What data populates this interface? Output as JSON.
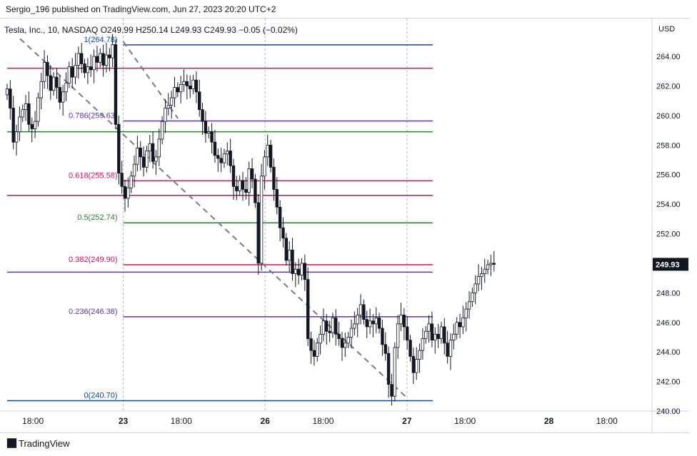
{
  "header": {
    "published": "Sergio_196 published on TradingView.com, Jun 27, 2023 20:20 UTC+2"
  },
  "chart_data": {
    "type": "candlestick",
    "legend": "Tesla, Inc., 10, NASDAQ  O249.99  H250.14  L249.93  C249.93  −0.05 (−0.02%)",
    "currency": "USD",
    "last_price": "249.93",
    "ylim": [
      240,
      265.5
    ],
    "y_ticks": [
      "240.00",
      "242.00",
      "244.00",
      "246.00",
      "248.00",
      "250.00",
      "252.00",
      "254.00",
      "256.00",
      "258.00",
      "260.00",
      "262.00",
      "264.00"
    ],
    "x_ticks": [
      {
        "label": "18:00",
        "pos": 0.04,
        "bold": false
      },
      {
        "label": "23",
        "pos": 0.18,
        "bold": true
      },
      {
        "label": "18:00",
        "pos": 0.27,
        "bold": false
      },
      {
        "label": "26",
        "pos": 0.4,
        "bold": true
      },
      {
        "label": "18:00",
        "pos": 0.49,
        "bold": false
      },
      {
        "label": "27",
        "pos": 0.62,
        "bold": true
      },
      {
        "label": "18:00",
        "pos": 0.71,
        "bold": false
      },
      {
        "label": "28",
        "pos": 0.84,
        "bold": true
      },
      {
        "label": "18:00",
        "pos": 0.93,
        "bold": false
      }
    ],
    "session_breaks": [
      0.18,
      0.4,
      0.62
    ],
    "fibonacci": [
      {
        "label": "1(264.78)",
        "price": 264.78,
        "color": "#0d47a1"
      },
      {
        "label": "0.786(259.63)",
        "price": 259.63,
        "color": "#5e35b1"
      },
      {
        "label": "0.618(255.58)",
        "price": 255.58,
        "color": "#c2185b"
      },
      {
        "label": "0.5(252.74)",
        "price": 252.74,
        "color": "#2e7d32"
      },
      {
        "label": "0.382(249.90)",
        "price": 249.9,
        "color": "#c2185b"
      },
      {
        "label": "0.236(246.38)",
        "price": 246.38,
        "color": "#5e35b1"
      },
      {
        "label": "0(240.70)",
        "price": 240.7,
        "color": "#0d47a1"
      }
    ],
    "horizontal_lines": [
      {
        "price": 263.2,
        "color": "#c2185b"
      },
      {
        "price": 258.9,
        "color": "#2e7d32"
      },
      {
        "price": 254.6,
        "color": "#c2185b"
      },
      {
        "price": 249.4,
        "color": "#5e35b1"
      }
    ],
    "trendline": {
      "from": {
        "pos": 0.02,
        "price": 265.2
      },
      "to": {
        "pos": 0.62,
        "price": 240.9
      },
      "color": "#787b86"
    },
    "trendline2": {
      "from": {
        "pos": 0.18,
        "price": 265.0
      },
      "to": {
        "pos": 0.265,
        "price": 259.8
      },
      "color": "#787b86"
    },
    "candles_close": [
      261.8,
      260.5,
      258.2,
      258.9,
      259.9,
      260.4,
      260.8,
      259.4,
      259.1,
      259.6,
      261.2,
      262.3,
      263.6,
      262.7,
      261.7,
      262.6,
      261.9,
      260.9,
      261.6,
      262.2,
      263.3,
      262.6,
      263.4,
      264.2,
      263.5,
      262.9,
      263.3,
      263.1,
      264.0,
      263.6,
      264.2,
      263.4,
      264.1,
      263.9,
      264.8,
      259.4,
      256.1,
      255.2,
      254.4,
      255.1,
      255.9,
      256.7,
      257.8,
      257.2,
      256.5,
      257.6,
      258.1,
      256.9,
      257.2,
      258.4,
      259.6,
      260.5,
      260.7,
      261.2,
      261.9,
      261.6,
      262.1,
      262.3,
      262.0,
      261.8,
      262.4,
      261.6,
      260.4,
      259.6,
      258.8,
      258.9,
      258.2,
      257.3,
      257.1,
      256.8,
      257.4,
      257.6,
      256.6,
      255.2,
      254.9,
      255.6,
      255.0,
      254.8,
      256.4,
      255.7,
      254.1,
      250.0,
      255.9,
      257.2,
      258.0,
      256.5,
      255.0,
      253.8,
      252.4,
      251.7,
      250.2,
      250.9,
      249.3,
      249.6,
      249.2,
      250.0,
      248.9,
      244.9,
      244.1,
      243.7,
      244.6,
      245.2,
      246.1,
      245.4,
      245.3,
      246.3,
      245.2,
      244.9,
      244.3,
      244.6,
      245.0,
      245.6,
      245.9,
      246.5,
      247.2,
      246.2,
      245.7,
      246.1,
      245.9,
      246.3,
      245.6,
      244.5,
      243.9,
      241.8,
      241.0,
      244.3,
      245.9,
      246.5,
      245.7,
      244.8,
      243.7,
      242.6,
      243.5,
      244.1,
      244.9,
      245.4,
      245.9,
      244.8,
      245.2,
      244.9,
      245.7,
      244.6,
      243.7,
      244.8,
      245.2,
      246.0,
      245.7,
      246.3,
      246.9,
      247.4,
      248.0,
      248.6,
      249.1,
      249.3,
      249.6,
      249.9,
      250.0,
      249.93
    ]
  }
}
